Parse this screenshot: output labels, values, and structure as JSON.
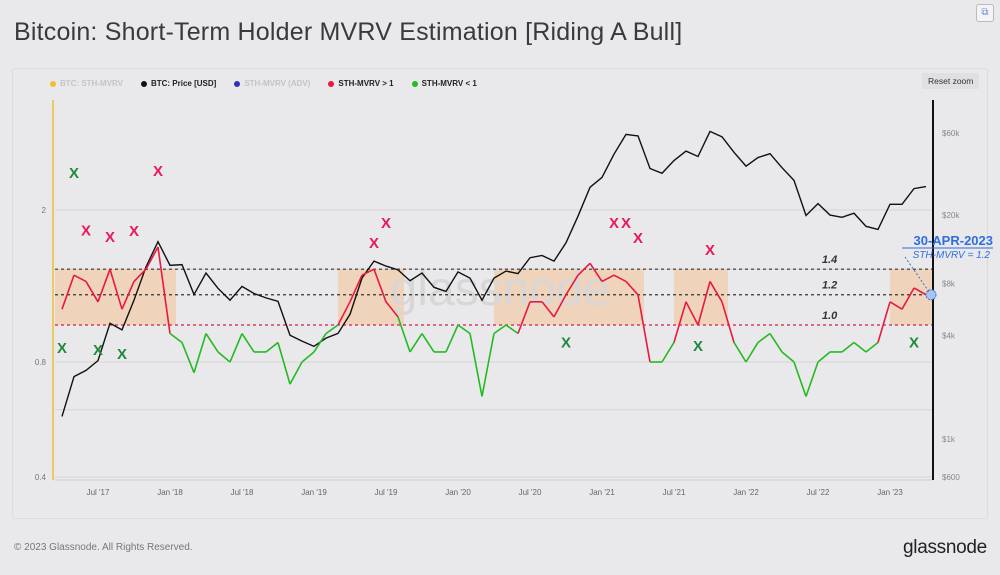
{
  "title": "Bitcoin: Short-Term Holder MVRV Estimation  [Riding A Bull]",
  "reset_zoom": "Reset zoom",
  "footer": "© 2023 Glassnode. All Rights Reserved.",
  "logo": "glassnode",
  "watermark": "glassnode",
  "legend": [
    {
      "label": "BTC: STH-MVRV",
      "color": "#f0c030",
      "muted": true
    },
    {
      "label": "BTC: Price [USD]",
      "color": "#111111",
      "muted": false
    },
    {
      "label": "STH-MVRV (ADV)",
      "color": "#3030c0",
      "muted": true
    },
    {
      "label": "STH-MVRV > 1",
      "color": "#e8193c",
      "muted": false
    },
    {
      "label": "STH-MVRV < 1",
      "color": "#22bb22",
      "muted": false
    }
  ],
  "chart_data": {
    "type": "line",
    "x_start": "2017-04",
    "x_step": "month",
    "x_ticks": [
      "Jul '17",
      "Jan '18",
      "Jul '18",
      "Jan '19",
      "Jul '19",
      "Jan '20",
      "Jul '20",
      "Jan '21",
      "Jul '21",
      "Jan '22",
      "Jul '22",
      "Jan '23"
    ],
    "y_left": {
      "scale": "log",
      "ticks": [
        {
          "label": "2",
          "value": 2
        },
        {
          "label": "0.8",
          "value": 0.8
        },
        {
          "label": "0.4",
          "value": 0.4
        }
      ],
      "range": [
        0.4,
        3.6
      ]
    },
    "y_right": {
      "scale": "log",
      "ticks": [
        {
          "label": "$60k",
          "value": 60000
        },
        {
          "label": "$20k",
          "value": 20000
        },
        {
          "label": "$8k",
          "value": 8000
        },
        {
          "label": "$4k",
          "value": 4000
        },
        {
          "label": "$1k",
          "value": 1000
        },
        {
          "label": "$600",
          "value": 600
        }
      ],
      "range": [
        600,
        60000
      ]
    },
    "series": [
      {
        "name": "BTC: Price [USD]",
        "axis": "right",
        "color": "#111111",
        "values": [
          1350,
          2300,
          2500,
          2850,
          4700,
          4300,
          6400,
          10000,
          14000,
          10200,
          10300,
          6900,
          9200,
          7500,
          6400,
          7700,
          7000,
          6600,
          6300,
          4000,
          3700,
          3450,
          3850,
          4100,
          5300,
          8600,
          10800,
          10100,
          9600,
          8300,
          9200,
          7600,
          7200,
          9350,
          8600,
          6400,
          8600,
          9450,
          9140,
          11300,
          11650,
          10800,
          13800,
          19700,
          29000,
          33100,
          45200,
          58900,
          57700,
          37300,
          35000,
          41500,
          47100,
          43800,
          61300,
          57000,
          46300,
          38500,
          43200,
          45500,
          37700,
          31800,
          19900,
          23300,
          20000,
          19400,
          20500,
          17200,
          16500,
          23100,
          23100,
          28500,
          29300
        ]
      },
      {
        "name": "BTC: STH-MVRV",
        "axis": "left",
        "color_above": "#e8193c",
        "color_below": "#22bb22",
        "threshold": 1,
        "values": [
          1.1,
          1.35,
          1.3,
          1.15,
          1.4,
          1.1,
          1.3,
          1.4,
          1.6,
          0.95,
          0.9,
          0.75,
          0.95,
          0.85,
          0.8,
          0.95,
          0.85,
          0.85,
          0.9,
          0.7,
          0.8,
          0.85,
          0.95,
          1.0,
          1.15,
          1.35,
          1.4,
          1.15,
          1.05,
          0.85,
          0.95,
          0.85,
          0.85,
          1.0,
          0.95,
          0.65,
          0.95,
          1.0,
          0.95,
          1.15,
          1.15,
          1.05,
          1.2,
          1.35,
          1.45,
          1.3,
          1.35,
          1.3,
          1.2,
          0.8,
          0.8,
          0.9,
          1.15,
          1.0,
          1.3,
          1.15,
          0.9,
          0.8,
          0.9,
          0.95,
          0.85,
          0.8,
          0.65,
          0.8,
          0.85,
          0.85,
          0.9,
          0.85,
          0.9,
          1.15,
          1.1,
          1.25,
          1.2
        ]
      }
    ],
    "reference_lines": [
      {
        "label": "1.4",
        "value": 1.4
      },
      {
        "label": "1.2",
        "value": 1.2
      },
      {
        "label": "1.0",
        "value": 1.0
      }
    ],
    "zones": [
      {
        "from": "2017-03",
        "to": "2018-01"
      },
      {
        "from": "2019-03",
        "to": "2019-08"
      },
      {
        "from": "2020-04",
        "to": "2021-04"
      },
      {
        "from": "2021-07",
        "to": "2021-11"
      },
      {
        "from": "2023-01",
        "to": "2023-04"
      }
    ],
    "markers": [
      {
        "label": "X",
        "type": "sell",
        "date": "2017-06",
        "value": 1.77
      },
      {
        "label": "X",
        "type": "sell",
        "date": "2017-08",
        "value": 1.7
      },
      {
        "label": "X",
        "type": "sell",
        "date": "2017-10",
        "value": 1.76
      },
      {
        "label": "X",
        "type": "sell",
        "date": "2017-12",
        "value": 2.53
      },
      {
        "label": "X",
        "type": "buy",
        "date": "2017-05",
        "value": 2.5
      },
      {
        "label": "X",
        "type": "buy",
        "date": "2017-04",
        "value": 0.87
      },
      {
        "label": "X",
        "type": "buy",
        "date": "2017-07",
        "value": 0.86
      },
      {
        "label": "X",
        "type": "buy",
        "date": "2017-09",
        "value": 0.84
      },
      {
        "label": "X",
        "type": "sell",
        "date": "2019-06",
        "value": 1.64
      },
      {
        "label": "X",
        "type": "sell",
        "date": "2019-07",
        "value": 1.85
      },
      {
        "label": "X",
        "type": "buy",
        "date": "2020-10",
        "value": 0.9
      },
      {
        "label": "X",
        "type": "sell",
        "date": "2021-02",
        "value": 1.85
      },
      {
        "label": "X",
        "type": "sell",
        "date": "2021-03",
        "value": 1.85
      },
      {
        "label": "X",
        "type": "sell",
        "date": "2021-04",
        "value": 1.69
      },
      {
        "label": "X",
        "type": "sell",
        "date": "2021-10",
        "value": 1.57
      },
      {
        "label": "X",
        "type": "buy",
        "date": "2021-09",
        "value": 0.88
      },
      {
        "label": "X",
        "type": "buy",
        "date": "2023-03",
        "value": 0.9
      }
    ],
    "annotation": {
      "date": "30-APR-2023",
      "text": "STH-MVRV = 1.2",
      "value": 1.2
    },
    "grid": true,
    "legend_position": "top-left"
  }
}
